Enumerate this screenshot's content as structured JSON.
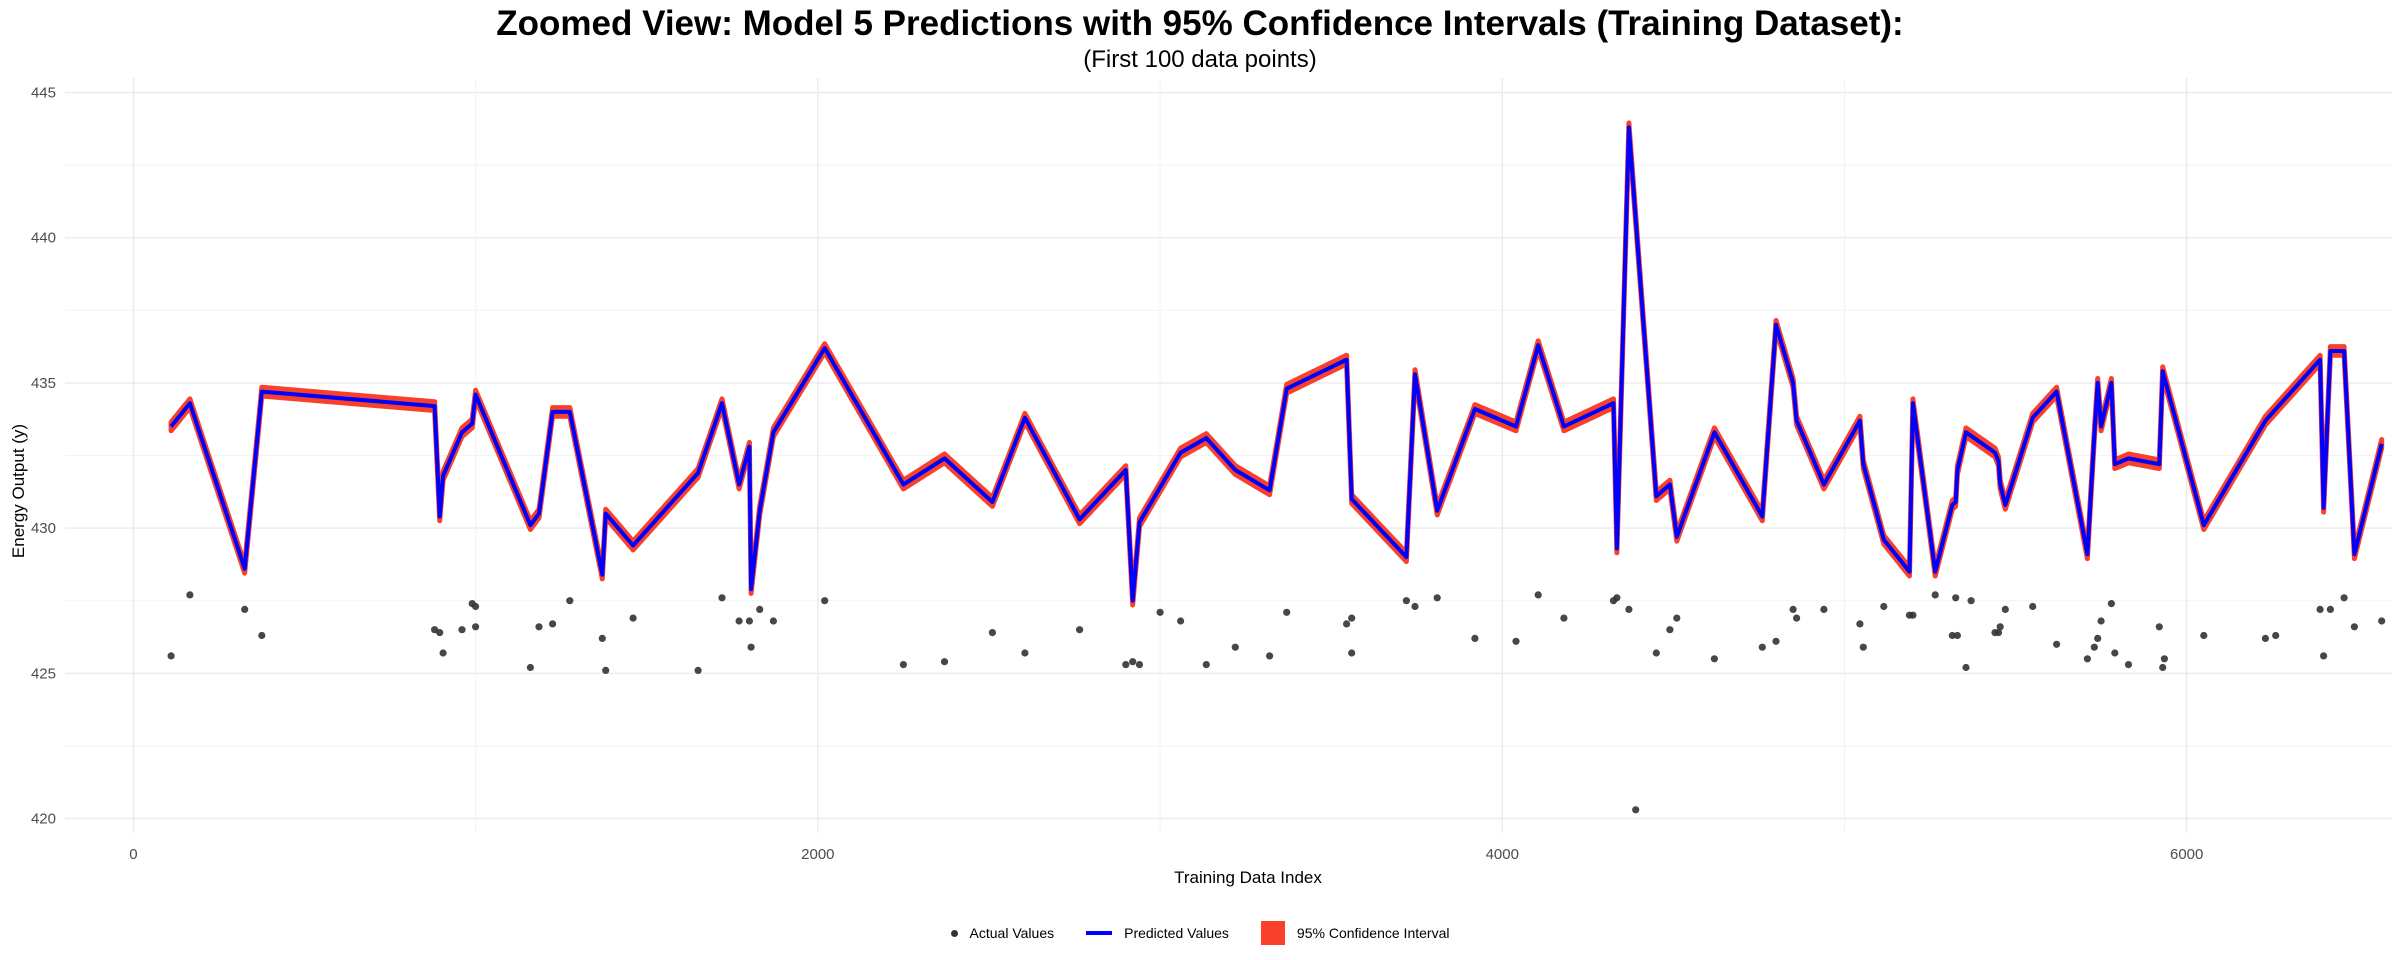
{
  "chart_data": {
    "type": "line",
    "title": "Zoomed View: Model 5 Predictions with 95% Confidence Intervals (Training Dataset):",
    "subtitle": "(First 100 data points)",
    "xlabel": "Training Data Index",
    "ylabel": "Energy Output (y)",
    "xlim": [
      -200,
      6600
    ],
    "ylim": [
      419.5,
      445.5
    ],
    "x_ticks": [
      0,
      2000,
      4000,
      6000
    ],
    "y_ticks": [
      420,
      425,
      430,
      435,
      440,
      445
    ],
    "grid": true,
    "legend_position": "bottom",
    "legend": {
      "actual": "Actual Values",
      "predicted": "Predicted Values",
      "ci": "95% Confidence Interval"
    },
    "colors": {
      "actual": "#333333",
      "predicted": "#0000ff",
      "ci": "#f8402b",
      "grid": "#ebebeb"
    },
    "ci_half_width": 0.15,
    "predicted": [
      [
        110,
        433.5
      ],
      [
        165,
        434.3
      ],
      [
        325,
        428.6
      ],
      [
        375,
        434.7
      ],
      [
        880,
        434.2
      ],
      [
        895,
        430.4
      ],
      [
        905,
        431.8
      ],
      [
        960,
        433.3
      ],
      [
        990,
        433.6
      ],
      [
        1000,
        434.6
      ],
      [
        1160,
        430.1
      ],
      [
        1185,
        430.5
      ],
      [
        1225,
        434.0
      ],
      [
        1275,
        434.0
      ],
      [
        1370,
        428.4
      ],
      [
        1380,
        430.5
      ],
      [
        1460,
        429.4
      ],
      [
        1650,
        431.9
      ],
      [
        1720,
        434.3
      ],
      [
        1770,
        431.5
      ],
      [
        1800,
        432.8
      ],
      [
        1805,
        427.9
      ],
      [
        1830,
        430.6
      ],
      [
        1870,
        433.3
      ],
      [
        2020,
        436.2
      ],
      [
        2250,
        431.5
      ],
      [
        2370,
        432.4
      ],
      [
        2510,
        430.9
      ],
      [
        2605,
        433.8
      ],
      [
        2765,
        430.3
      ],
      [
        2900,
        432.0
      ],
      [
        2920,
        427.5
      ],
      [
        2940,
        430.2
      ],
      [
        3060,
        432.6
      ],
      [
        3135,
        433.1
      ],
      [
        3220,
        432.0
      ],
      [
        3320,
        431.3
      ],
      [
        3370,
        434.8
      ],
      [
        3545,
        435.8
      ],
      [
        3560,
        431.0
      ],
      [
        3720,
        429.0
      ],
      [
        3745,
        435.3
      ],
      [
        3810,
        430.6
      ],
      [
        3920,
        434.1
      ],
      [
        4040,
        433.5
      ],
      [
        4105,
        436.3
      ],
      [
        4180,
        433.5
      ],
      [
        4325,
        434.3
      ],
      [
        4335,
        429.3
      ],
      [
        4370,
        443.8
      ],
      [
        4450,
        431.1
      ],
      [
        4490,
        431.5
      ],
      [
        4510,
        429.7
      ],
      [
        4620,
        433.3
      ],
      [
        4760,
        430.4
      ],
      [
        4800,
        437.0
      ],
      [
        4850,
        435.0
      ],
      [
        4860,
        433.7
      ],
      [
        4940,
        431.5
      ],
      [
        5045,
        433.7
      ],
      [
        5055,
        432.2
      ],
      [
        5115,
        429.6
      ],
      [
        5190,
        428.5
      ],
      [
        5200,
        434.3
      ],
      [
        5265,
        428.5
      ],
      [
        5315,
        430.8
      ],
      [
        5325,
        430.9
      ],
      [
        5330,
        432.0
      ],
      [
        5355,
        433.3
      ],
      [
        5440,
        432.6
      ],
      [
        5450,
        432.3
      ],
      [
        5455,
        431.5
      ],
      [
        5470,
        430.8
      ],
      [
        5550,
        433.8
      ],
      [
        5620,
        434.7
      ],
      [
        5710,
        429.1
      ],
      [
        5730,
        433.2
      ],
      [
        5740,
        435.0
      ],
      [
        5750,
        433.5
      ],
      [
        5780,
        435.0
      ],
      [
        5790,
        432.2
      ],
      [
        5830,
        432.4
      ],
      [
        5920,
        432.2
      ],
      [
        5930,
        435.4
      ],
      [
        6050,
        430.1
      ],
      [
        6230,
        433.7
      ],
      [
        6390,
        435.8
      ],
      [
        6400,
        430.7
      ],
      [
        6420,
        436.1
      ],
      [
        6460,
        436.1
      ],
      [
        6490,
        429.1
      ],
      [
        6570,
        432.9
      ]
    ],
    "actual": [
      [
        110,
        425.6
      ],
      [
        165,
        427.7
      ],
      [
        325,
        427.2
      ],
      [
        375,
        426.3
      ],
      [
        880,
        426.5
      ],
      [
        895,
        426.4
      ],
      [
        905,
        425.7
      ],
      [
        960,
        426.5
      ],
      [
        990,
        427.4
      ],
      [
        1000,
        427.3
      ],
      [
        1000,
        426.6
      ],
      [
        1160,
        425.2
      ],
      [
        1185,
        426.6
      ],
      [
        1225,
        426.7
      ],
      [
        1275,
        427.5
      ],
      [
        1370,
        426.2
      ],
      [
        1380,
        425.1
      ],
      [
        1460,
        426.9
      ],
      [
        1650,
        425.1
      ],
      [
        1720,
        427.6
      ],
      [
        1770,
        426.8
      ],
      [
        1800,
        426.8
      ],
      [
        1805,
        425.9
      ],
      [
        1830,
        427.2
      ],
      [
        1870,
        426.8
      ],
      [
        2020,
        427.5
      ],
      [
        2250,
        425.3
      ],
      [
        2370,
        425.4
      ],
      [
        2510,
        426.4
      ],
      [
        2605,
        425.7
      ],
      [
        2765,
        426.5
      ],
      [
        2900,
        425.3
      ],
      [
        2920,
        425.4
      ],
      [
        2940,
        425.3
      ],
      [
        3000,
        427.1
      ],
      [
        3060,
        426.8
      ],
      [
        3135,
        425.3
      ],
      [
        3220,
        425.9
      ],
      [
        3320,
        425.6
      ],
      [
        3370,
        427.1
      ],
      [
        3545,
        426.7
      ],
      [
        3560,
        426.9
      ],
      [
        3560,
        425.7
      ],
      [
        3720,
        427.5
      ],
      [
        3745,
        427.3
      ],
      [
        3810,
        427.6
      ],
      [
        3920,
        426.2
      ],
      [
        4040,
        426.1
      ],
      [
        4105,
        427.7
      ],
      [
        4180,
        426.9
      ],
      [
        4325,
        427.5
      ],
      [
        4335,
        427.6
      ],
      [
        4370,
        427.2
      ],
      [
        4390,
        420.3
      ],
      [
        4450,
        425.7
      ],
      [
        4490,
        426.5
      ],
      [
        4510,
        426.9
      ],
      [
        4620,
        425.5
      ],
      [
        4760,
        425.9
      ],
      [
        4800,
        426.1
      ],
      [
        4850,
        427.2
      ],
      [
        4860,
        426.9
      ],
      [
        4940,
        427.2
      ],
      [
        5045,
        426.7
      ],
      [
        5055,
        425.9
      ],
      [
        5115,
        427.3
      ],
      [
        5190,
        427.0
      ],
      [
        5200,
        427.0
      ],
      [
        5265,
        427.7
      ],
      [
        5315,
        426.3
      ],
      [
        5325,
        427.6
      ],
      [
        5330,
        426.3
      ],
      [
        5355,
        425.2
      ],
      [
        5370,
        427.5
      ],
      [
        5440,
        426.4
      ],
      [
        5450,
        426.4
      ],
      [
        5455,
        426.6
      ],
      [
        5470,
        427.2
      ],
      [
        5550,
        427.3
      ],
      [
        5620,
        426.0
      ],
      [
        5710,
        425.5
      ],
      [
        5730,
        425.9
      ],
      [
        5740,
        426.2
      ],
      [
        5750,
        426.8
      ],
      [
        5780,
        427.4
      ],
      [
        5790,
        425.7
      ],
      [
        5830,
        425.3
      ],
      [
        5920,
        426.6
      ],
      [
        5930,
        425.2
      ],
      [
        5935,
        425.5
      ],
      [
        6050,
        426.3
      ],
      [
        6230,
        426.2
      ],
      [
        6260,
        426.3
      ],
      [
        6390,
        427.2
      ],
      [
        6400,
        425.6
      ],
      [
        6420,
        427.2
      ],
      [
        6460,
        427.6
      ],
      [
        6490,
        426.6
      ],
      [
        6570,
        426.8
      ]
    ]
  }
}
